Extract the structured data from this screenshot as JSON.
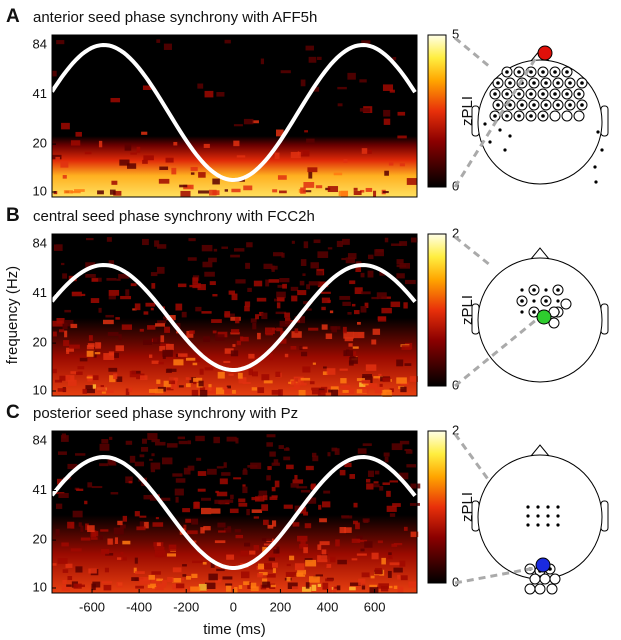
{
  "chart_data": [
    {
      "type": "heatmap",
      "panel": "A",
      "title": "anterior seed phase synchrony with AFF5h",
      "xlim": [
        -770,
        780
      ],
      "ylim": [
        9.3,
        97
      ],
      "log_y": true,
      "yticks": [
        10,
        20,
        41,
        84
      ],
      "colorbar": {
        "label": "zPLI",
        "lim": [
          0,
          5
        ],
        "ticks": [
          0,
          5
        ]
      }
    },
    {
      "type": "heatmap",
      "panel": "B",
      "title": "central seed phase synchrony with FCC2h",
      "ylabel": "frequency (Hz)",
      "xlim": [
        -770,
        780
      ],
      "ylim": [
        9.3,
        97
      ],
      "log_y": true,
      "yticks": [
        10,
        20,
        41,
        84
      ],
      "colorbar": {
        "label": "zPLI",
        "lim": [
          0,
          2
        ],
        "ticks": [
          0,
          2
        ]
      }
    },
    {
      "type": "heatmap",
      "panel": "C",
      "title": "posterior seed phase synchrony with Pz",
      "xlabel": "time (ms)",
      "xlim": [
        -770,
        780
      ],
      "xticks": [
        -600,
        -400,
        -200,
        0,
        200,
        400,
        600
      ],
      "ylim": [
        9.3,
        97
      ],
      "log_y": true,
      "yticks": [
        10,
        20,
        41,
        84
      ],
      "colorbar": {
        "label": "zPLI",
        "lim": [
          0,
          2
        ],
        "ticks": [
          0,
          2
        ]
      }
    }
  ]
}
